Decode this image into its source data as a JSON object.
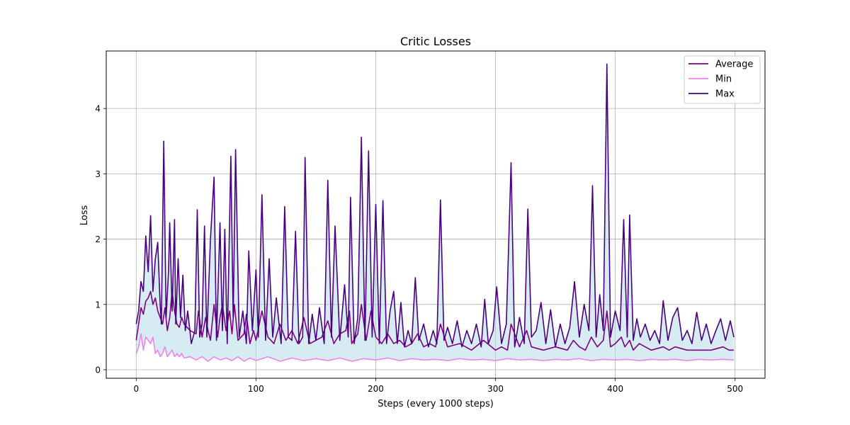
{
  "chart_data": {
    "type": "line",
    "title": "Critic Losses",
    "xlabel": "Steps (every 1000 steps)",
    "ylabel": "Loss",
    "xlim": [
      -25,
      525
    ],
    "ylim": [
      -0.13,
      4.88
    ],
    "xticks": [
      0,
      100,
      200,
      300,
      400,
      500
    ],
    "yticks": [
      0,
      1,
      2,
      3,
      4
    ],
    "grid": true,
    "legend_position": "upper-right",
    "band_color": "#add8e6",
    "series": [
      {
        "name": "Average",
        "color": "#800080",
        "x": [
          0,
          2,
          4,
          6,
          8,
          10,
          12,
          14,
          16,
          18,
          20,
          22,
          24,
          26,
          28,
          30,
          32,
          34,
          36,
          38,
          40,
          45,
          50,
          52,
          55,
          58,
          60,
          62,
          65,
          68,
          70,
          72,
          75,
          78,
          80,
          82,
          85,
          90,
          92,
          95,
          98,
          100,
          105,
          110,
          115,
          120,
          125,
          130,
          135,
          140,
          145,
          150,
          155,
          160,
          165,
          170,
          175,
          178,
          180,
          185,
          188,
          192,
          196,
          200,
          205,
          210,
          215,
          220,
          225,
          230,
          235,
          240,
          245,
          250,
          254,
          260,
          270,
          280,
          290,
          300,
          305,
          310,
          313,
          320,
          326,
          330,
          340,
          350,
          360,
          365,
          370,
          375,
          380,
          385,
          390,
          393,
          396,
          400,
          405,
          408,
          412,
          415,
          420,
          430,
          440,
          445,
          450,
          460,
          470,
          480,
          490,
          495,
          499
        ],
        "y": [
          0.45,
          0.7,
          0.95,
          0.85,
          1.05,
          1.1,
          1.2,
          1.0,
          1.1,
          0.9,
          0.8,
          0.7,
          0.95,
          0.6,
          0.8,
          1.2,
          0.9,
          0.7,
          0.65,
          0.8,
          0.7,
          0.6,
          0.55,
          0.9,
          0.5,
          0.8,
          0.6,
          0.45,
          1.0,
          0.5,
          0.8,
          1.0,
          0.6,
          0.9,
          0.55,
          1.0,
          0.45,
          0.55,
          0.85,
          0.4,
          0.6,
          0.45,
          0.9,
          0.5,
          0.4,
          0.7,
          0.45,
          0.6,
          0.4,
          0.8,
          0.4,
          0.45,
          0.5,
          0.75,
          0.4,
          0.55,
          0.6,
          0.9,
          0.4,
          0.55,
          1.0,
          0.45,
          0.9,
          0.5,
          0.4,
          0.55,
          0.4,
          0.45,
          0.35,
          0.4,
          0.55,
          0.35,
          0.4,
          0.35,
          0.7,
          0.35,
          0.4,
          0.3,
          0.45,
          0.3,
          0.35,
          0.3,
          0.7,
          0.35,
          0.6,
          0.35,
          0.3,
          0.35,
          0.3,
          0.45,
          0.35,
          0.3,
          0.5,
          0.35,
          0.45,
          0.9,
          0.35,
          0.4,
          0.5,
          0.35,
          0.45,
          0.3,
          0.4,
          0.3,
          0.35,
          0.3,
          0.35,
          0.3,
          0.3,
          0.3,
          0.35,
          0.3,
          0.3
        ]
      },
      {
        "name": "Min",
        "color": "#ee82ee",
        "x": [
          0,
          2,
          4,
          6,
          8,
          10,
          12,
          14,
          16,
          18,
          20,
          22,
          24,
          26,
          28,
          30,
          32,
          34,
          36,
          38,
          40,
          45,
          50,
          55,
          60,
          65,
          70,
          75,
          80,
          85,
          90,
          95,
          100,
          110,
          120,
          130,
          140,
          150,
          160,
          170,
          180,
          190,
          200,
          210,
          220,
          230,
          240,
          250,
          260,
          270,
          280,
          290,
          300,
          310,
          320,
          330,
          340,
          350,
          360,
          370,
          380,
          390,
          400,
          410,
          420,
          430,
          440,
          450,
          460,
          470,
          480,
          490,
          499
        ],
        "y": [
          0.25,
          0.35,
          0.55,
          0.3,
          0.5,
          0.45,
          0.4,
          0.5,
          0.25,
          0.3,
          0.2,
          0.25,
          0.35,
          0.2,
          0.25,
          0.3,
          0.2,
          0.25,
          0.2,
          0.25,
          0.18,
          0.2,
          0.15,
          0.2,
          0.13,
          0.2,
          0.15,
          0.18,
          0.14,
          0.2,
          0.13,
          0.18,
          0.14,
          0.2,
          0.13,
          0.18,
          0.14,
          0.17,
          0.14,
          0.18,
          0.13,
          0.17,
          0.15,
          0.18,
          0.14,
          0.17,
          0.15,
          0.16,
          0.14,
          0.17,
          0.15,
          0.16,
          0.14,
          0.17,
          0.15,
          0.16,
          0.14,
          0.16,
          0.15,
          0.17,
          0.14,
          0.16,
          0.15,
          0.16,
          0.14,
          0.16,
          0.15,
          0.16,
          0.14,
          0.16,
          0.15,
          0.16,
          0.15
        ]
      },
      {
        "name": "Max",
        "color": "#4b0082",
        "x": [
          0,
          2,
          4,
          6,
          8,
          10,
          12,
          14,
          16,
          18,
          20,
          21,
          23,
          25,
          27,
          28,
          30,
          32,
          33,
          35,
          37,
          39,
          41,
          43,
          46,
          49,
          51,
          53,
          55,
          57,
          59,
          62,
          65,
          67,
          70,
          72,
          74,
          76,
          79,
          81,
          83,
          86,
          89,
          92,
          94,
          97,
          100,
          102,
          105,
          108,
          111,
          114,
          117,
          121,
          124,
          127,
          130,
          133,
          136,
          139,
          141,
          144,
          147,
          150,
          153,
          157,
          160,
          163,
          166,
          170,
          174,
          177,
          179,
          182,
          185,
          188,
          191,
          194,
          197,
          200,
          203,
          206,
          209,
          212,
          215,
          218,
          221,
          224,
          227,
          230,
          233,
          236,
          240,
          244,
          248,
          251,
          254,
          257,
          260,
          264,
          268,
          272,
          276,
          280,
          284,
          288,
          291,
          294,
          298,
          301,
          305,
          309,
          313,
          316,
          320,
          324,
          327,
          330,
          334,
          338,
          342,
          346,
          350,
          354,
          358,
          362,
          366,
          370,
          374,
          378,
          381,
          384,
          387,
          390,
          393,
          396,
          400,
          404,
          407,
          410,
          412,
          415,
          418,
          421,
          425,
          429,
          433,
          437,
          440,
          444,
          448,
          452,
          456,
          460,
          464,
          468,
          472,
          476,
          480,
          484,
          488,
          492,
          496,
          499
        ],
        "y": [
          0.7,
          0.9,
          1.35,
          1.2,
          2.05,
          1.5,
          2.36,
          1.2,
          1.7,
          1.95,
          1.0,
          0.7,
          3.5,
          0.8,
          1.5,
          2.25,
          0.9,
          2.3,
          0.7,
          1.7,
          0.8,
          1.45,
          0.6,
          0.9,
          0.4,
          0.6,
          2.45,
          0.5,
          0.7,
          2.2,
          0.5,
          2.0,
          2.95,
          0.45,
          2.25,
          0.6,
          2.15,
          0.4,
          3.27,
          0.8,
          3.37,
          0.5,
          0.9,
          0.4,
          1.82,
          0.6,
          1.53,
          0.5,
          2.68,
          0.45,
          1.7,
          0.5,
          1.1,
          0.4,
          2.5,
          0.5,
          0.45,
          2.12,
          0.4,
          0.5,
          3.25,
          0.4,
          0.85,
          0.45,
          0.95,
          0.4,
          2.9,
          0.5,
          2.2,
          0.45,
          1.3,
          0.5,
          2.64,
          0.4,
          0.8,
          3.56,
          0.45,
          3.35,
          0.5,
          2.53,
          0.4,
          2.59,
          0.4,
          0.9,
          1.2,
          0.4,
          1.03,
          0.35,
          0.6,
          0.4,
          1.41,
          0.45,
          0.7,
          0.35,
          0.6,
          0.4,
          2.6,
          0.45,
          0.65,
          0.4,
          0.75,
          0.35,
          0.6,
          0.4,
          0.7,
          0.35,
          1.08,
          0.4,
          0.6,
          1.27,
          0.4,
          0.7,
          3.17,
          0.35,
          0.8,
          0.4,
          2.46,
          0.5,
          0.6,
          1.03,
          0.4,
          0.92,
          0.35,
          0.7,
          0.4,
          0.65,
          1.35,
          0.5,
          1.0,
          0.6,
          2.82,
          0.5,
          1.15,
          0.6,
          4.68,
          0.5,
          0.9,
          0.6,
          2.3,
          0.5,
          2.37,
          0.45,
          0.78,
          0.5,
          0.7,
          0.45,
          0.6,
          0.4,
          1.06,
          0.45,
          0.8,
          0.95,
          0.45,
          0.6,
          0.4,
          0.88,
          0.45,
          0.7,
          0.4,
          0.6,
          0.78,
          0.45,
          0.75,
          0.5
        ]
      }
    ]
  }
}
